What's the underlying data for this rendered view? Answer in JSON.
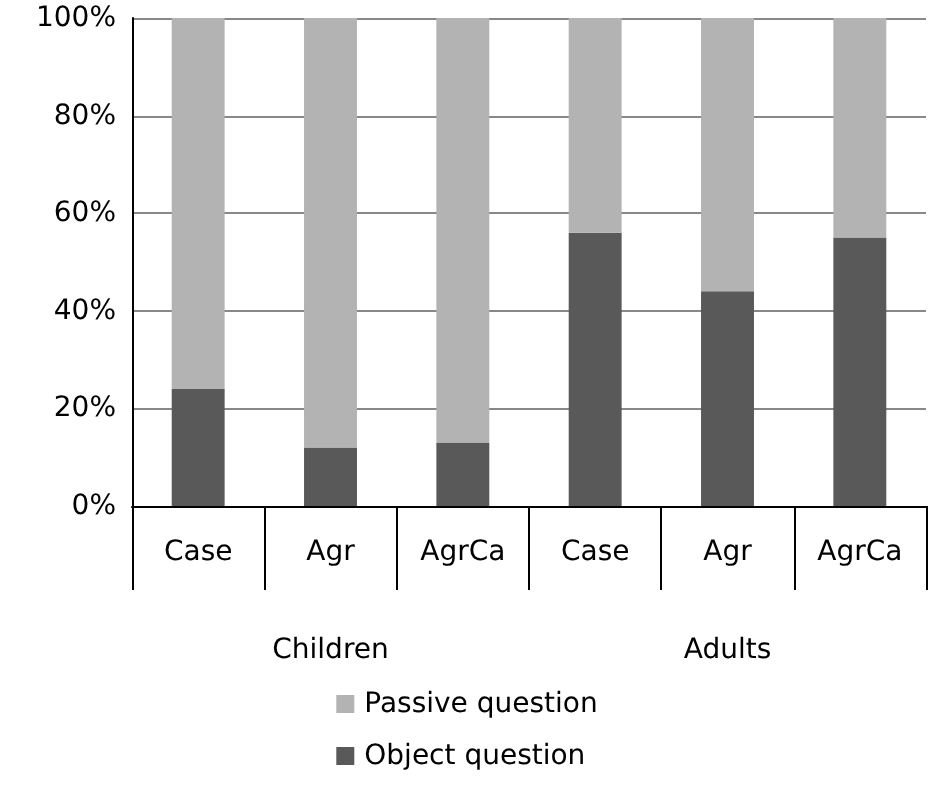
{
  "chart_data": {
    "type": "bar",
    "stacked": true,
    "categories": [
      "Case",
      "Agr",
      "AgrCa",
      "Case",
      "Agr",
      "AgrCa"
    ],
    "annotations": [
      "Children",
      "Adults"
    ],
    "series": [
      {
        "name": "Object question",
        "color": "#595959",
        "values": [
          24,
          12,
          13,
          56,
          44,
          55
        ]
      },
      {
        "name": "Passive question",
        "color": "#b3b3b3",
        "values": [
          76,
          88,
          87,
          44,
          56,
          45
        ]
      }
    ],
    "ylim": [
      0,
      100
    ],
    "yticks": [
      {
        "value": 0,
        "label": "0%"
      },
      {
        "value": 20,
        "label": "20%"
      },
      {
        "value": 40,
        "label": "40%"
      },
      {
        "value": 60,
        "label": "60%"
      },
      {
        "value": 80,
        "label": "80%"
      },
      {
        "value": 100,
        "label": "100%"
      }
    ],
    "grid": "y",
    "legend": "bottom"
  }
}
